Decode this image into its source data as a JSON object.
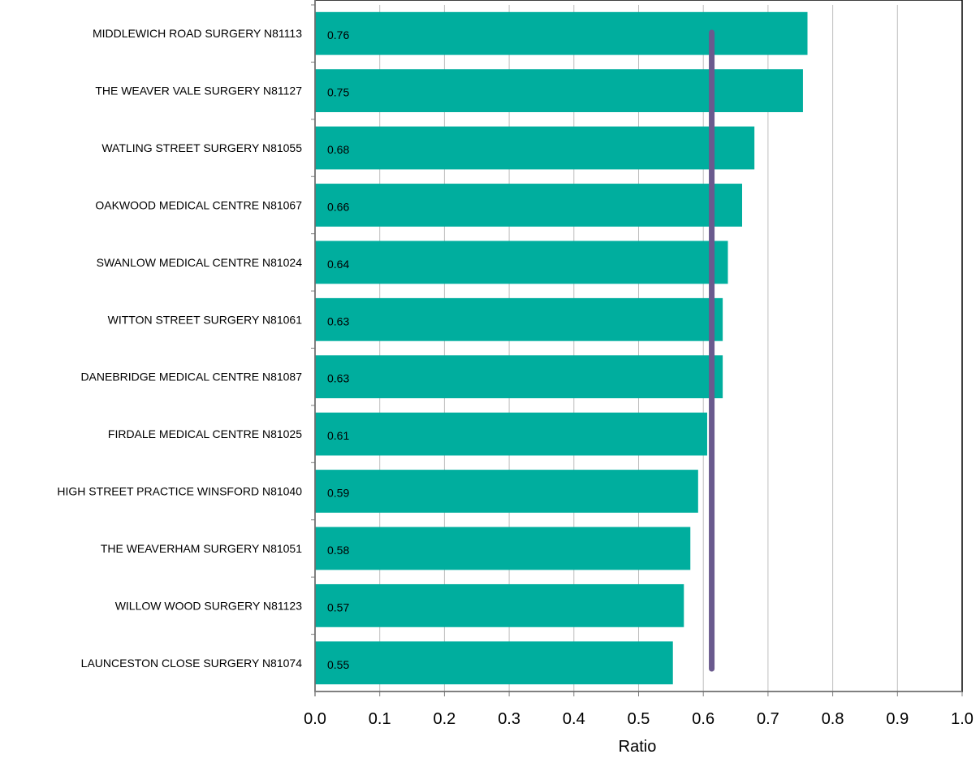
{
  "chart_data": {
    "type": "bar",
    "orientation": "horizontal",
    "categories": [
      "MIDDLEWICH ROAD SURGERY N81113",
      "THE WEAVER VALE SURGERY N81127",
      "WATLING STREET SURGERY N81055",
      "OAKWOOD MEDICAL CENTRE N81067",
      "SWANLOW MEDICAL CENTRE N81024",
      "WITTON STREET SURGERY N81061",
      "DANEBRIDGE MEDICAL CENTRE N81087",
      "FIRDALE MEDICAL CENTRE N81025",
      "HIGH STREET PRACTICE WINSFORD N81040",
      "THE WEAVERHAM SURGERY N81051",
      "WILLOW WOOD SURGERY N81123",
      "LAUNCESTON CLOSE SURGERY N81074"
    ],
    "values": [
      0.761,
      0.754,
      0.679,
      0.66,
      0.638,
      0.63,
      0.63,
      0.606,
      0.592,
      0.58,
      0.57,
      0.553
    ],
    "data_labels": [
      "0.76",
      "0.75",
      "0.68",
      "0.66",
      "0.64",
      "0.63",
      "0.63",
      "0.61",
      "0.59",
      "0.58",
      "0.57",
      "0.55"
    ],
    "reference_line": {
      "value": 0.613,
      "color": "#6a5a8e"
    },
    "xlabel": "Ratio",
    "ylabel": "",
    "title": "",
    "xlim": [
      0,
      1.0
    ],
    "xticks": [
      "0.0",
      "0.1",
      "0.2",
      "0.3",
      "0.4",
      "0.5",
      "0.6",
      "0.7",
      "0.8",
      "0.9",
      "1.0"
    ],
    "grid": "vertical",
    "bar_color": "#00ae9e",
    "legend": "none"
  }
}
